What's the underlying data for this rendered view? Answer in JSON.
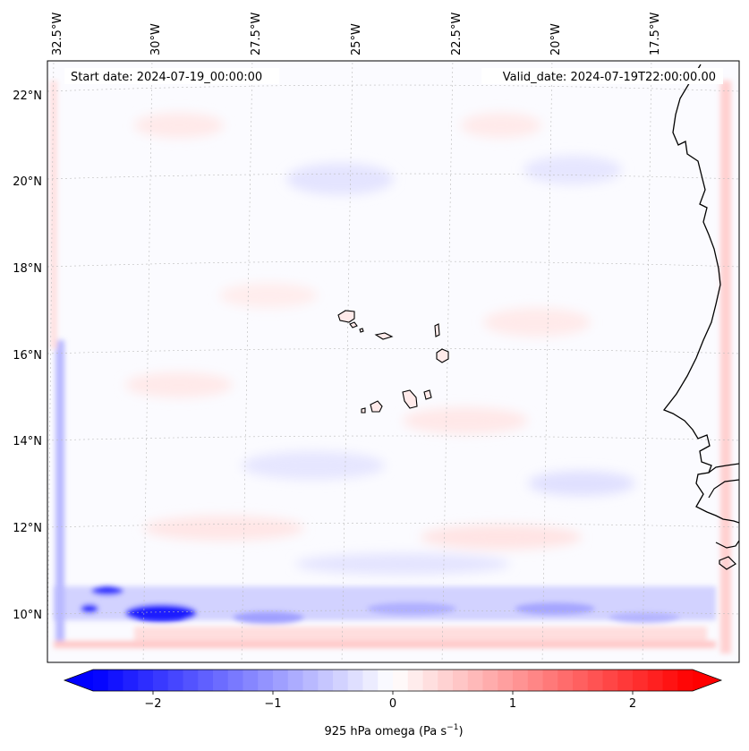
{
  "map": {
    "start_label": "Start date: 2024-07-19_00:00:00",
    "valid_label": "Valid_date: 2024-07-19T22:00:00.00",
    "lon_labels": [
      "32.5°W",
      "30°W",
      "27.5°W",
      "25°W",
      "22.5°W",
      "20°W",
      "17.5°W"
    ],
    "lat_labels": [
      "22°N",
      "20°N",
      "18°N",
      "16°N",
      "14°N",
      "12°N",
      "10°N"
    ],
    "field": "925 hPa omega",
    "coastline_color": "#000000",
    "gridline_color": "#bbbbbb"
  },
  "colorbar": {
    "label_main": "925 hPa omega (Pa s",
    "label_exp": "−1",
    "label_close": ")",
    "ticks": [
      {
        "value": -2,
        "label": "−2"
      },
      {
        "value": -1,
        "label": "−1"
      },
      {
        "value": 0,
        "label": "0"
      },
      {
        "value": 1,
        "label": "1"
      },
      {
        "value": 2,
        "label": "2"
      }
    ],
    "min": -2.5,
    "max": 2.5,
    "color_neg": "#0000ff",
    "color_zero": "#ffffff",
    "color_pos": "#ff0000",
    "levels": 40
  }
}
